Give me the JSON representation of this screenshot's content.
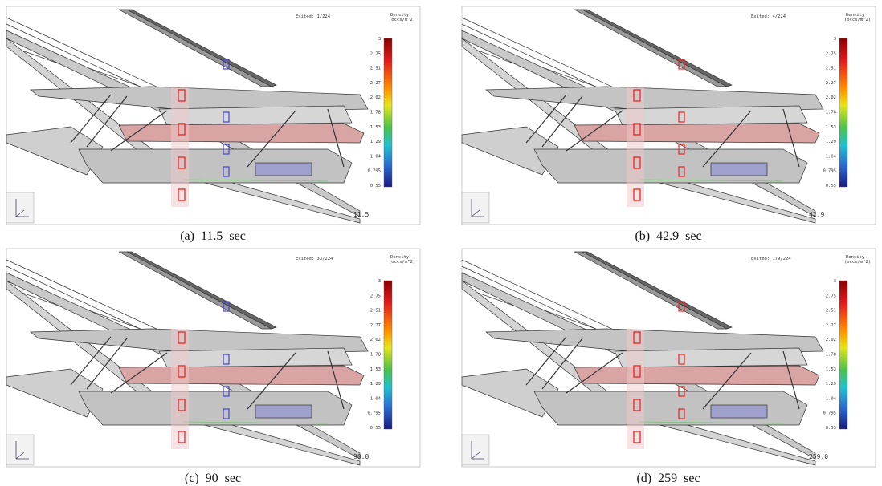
{
  "legend": {
    "title": "Density",
    "unit": "(occs/m^2)",
    "ticks": [
      "3",
      "2.75",
      "2.51",
      "2.27",
      "2.02",
      "1.78",
      "1.53",
      "1.29",
      "1.04",
      "0.795",
      "0.55"
    ]
  },
  "panels": [
    {
      "exited": "Exited:   1/224",
      "time": "11.5",
      "caption": "(a)  11.5  sec"
    },
    {
      "exited": "Exited:   4/224",
      "time": "42.9",
      "caption": "(b)  42.9  sec"
    },
    {
      "exited": "Exited:  33/224",
      "time": "90.0",
      "caption": "(c)  90  sec"
    },
    {
      "exited": "Exited: 179/224",
      "time": "259.0",
      "caption": "(d)  259  sec"
    }
  ]
}
